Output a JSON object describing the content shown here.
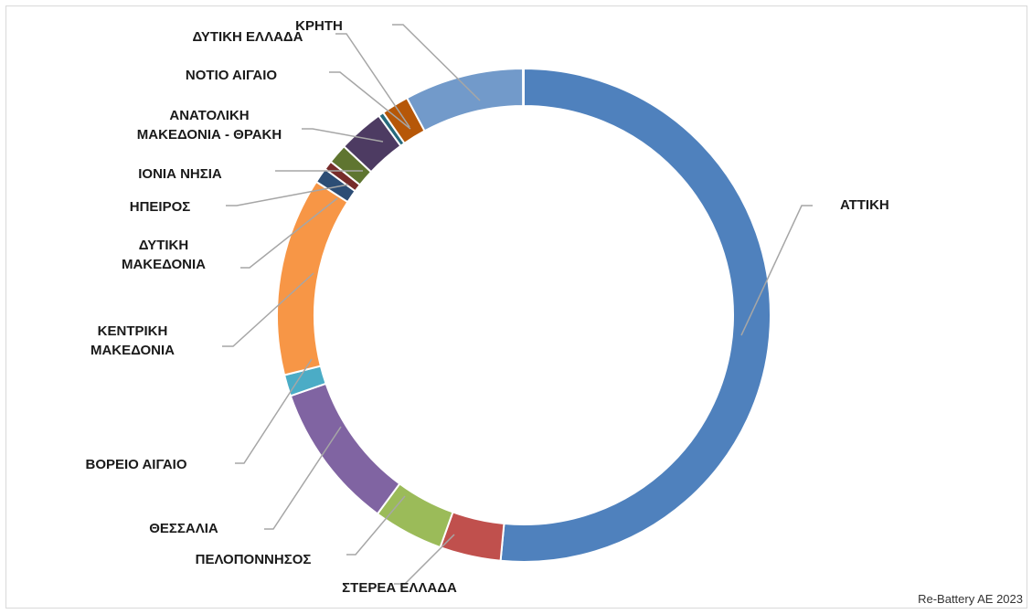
{
  "chart_data": {
    "type": "pie",
    "variant": "donut",
    "title": "",
    "categories": [
      "ΑΤΤΙΚΗ",
      "ΣΤΕΡΕΑ ΕΛΛΑΔΑ",
      "ΠΕΛΟΠΟΝΝΗΣΟΣ",
      "ΘΕΣΣΑΛΙΑ",
      "ΒΟΡΕΙΟ ΑΙΓΑΙΟ",
      "ΚΕΝΤΡΙΚΗ ΜΑΚΕΔΟΝΙΑ",
      "ΔΥΤΙΚΗ ΜΑΚΕΔΟΝΙΑ",
      "ΗΠΕΙΡΟΣ",
      "ΙΟΝΙΑ ΝΗΣΙΑ",
      "ΑΝΑΤΟΛΙΚΗ ΜΑΚΕΔΟΝΙΑ - ΘΡΑΚΗ",
      "ΝΟΤΙΟ ΑΙΓΑΙΟ",
      "ΔΥΤΙΚΗ ΕΛΛΑΔΑ",
      "ΚΡΗΤΗ",
      "(unlabeled)"
    ],
    "values": [
      51.5,
      4.0,
      4.6,
      9.6,
      1.4,
      13.0,
      1.0,
      0.6,
      1.3,
      3.0,
      0.35,
      1.8,
      7.8,
      0.05
    ],
    "colors": [
      "#4F81BD",
      "#C0504D",
      "#9BBB59",
      "#8064A2",
      "#4BACC6",
      "#F79646",
      "#2C4D75",
      "#772C2A",
      "#5F7530",
      "#4D3B62",
      "#276A7C",
      "#B65708",
      "#729ACA",
      "#dddddd"
    ],
    "labels": [
      [
        "ΑΤΤΙΚΗ"
      ],
      [
        "ΣΤΕΡΕΑ ΕΛΛΑΔΑ"
      ],
      [
        "ΠΕΛΟΠΟΝΝΗΣΟΣ"
      ],
      [
        "ΘΕΣΣΑΛΙΑ"
      ],
      [
        "ΒΟΡΕΙΟ ΑΙΓΑΙΟ"
      ],
      [
        "ΚΕΝΤΡΙΚΗ",
        "ΜΑΚΕΔΟΝΙΑ"
      ],
      [
        "ΔΥΤΙΚΗ",
        "ΜΑΚΕΔΟΝΙΑ"
      ],
      [
        "ΗΠΕΙΡΟΣ"
      ],
      [
        "ΙΟΝΙΑ ΝΗΣΙΑ"
      ],
      [
        "ΑΝΑΤΟΛΙΚΗ",
        "ΜΑΚΕΔΟΝΙΑ - ΘΡΑΚΗ"
      ],
      [
        "ΝΟΤΙΟ ΑΙΓΑΙΟ"
      ],
      [
        "ΔΥΤΙΚΗ ΕΛΛΑΔΑ"
      ],
      [
        "ΚΡΗΤΗ"
      ],
      []
    ],
    "legend": "none",
    "note": "leader-line labels"
  },
  "footer": {
    "credit": "Re-Battery AE 2023"
  }
}
